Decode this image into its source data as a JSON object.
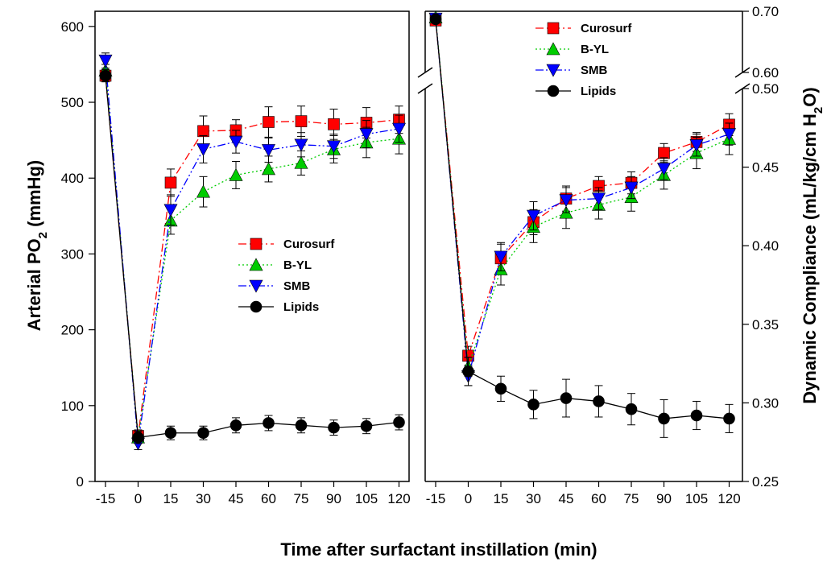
{
  "chart_data": [
    {
      "type": "line",
      "panel": "left",
      "title": "",
      "xlabel": "Time after surfactant instillation (min)",
      "ylabel": "Arterial PO2 (mmHg)",
      "ylabel_parts": {
        "main": "Arterial PO",
        "sub": "2",
        "tail": " (mmHg)"
      },
      "x_categories": [
        "-15",
        "0",
        "15",
        "30",
        "45",
        "60",
        "75",
        "90",
        "105",
        "120"
      ],
      "yticks": [
        "0",
        "100",
        "200",
        "300",
        "400",
        "500",
        "600"
      ],
      "ylim": [
        0,
        620
      ],
      "legend_position": "center-right",
      "error_bars": true,
      "series": [
        {
          "name": "Curosurf",
          "color": "#ff0000",
          "marker": "square",
          "line": "dash-dot",
          "values": [
            535,
            60,
            394,
            462,
            463,
            474,
            475,
            471,
            473,
            477
          ],
          "errors": [
            8,
            8,
            18,
            20,
            14,
            20,
            20,
            20,
            20,
            18
          ]
        },
        {
          "name": "B-YL",
          "color": "#00cc00",
          "marker": "triangle-up",
          "line": "dotted",
          "values": [
            542,
            58,
            344,
            382,
            404,
            412,
            420,
            438,
            447,
            452
          ],
          "errors": [
            8,
            8,
            18,
            20,
            18,
            17,
            16,
            18,
            20,
            20
          ]
        },
        {
          "name": "SMB",
          "color": "#0000ff",
          "marker": "triangle-down",
          "line": "dash-dot-dot",
          "values": [
            555,
            50,
            358,
            438,
            448,
            437,
            444,
            442,
            458,
            465
          ],
          "errors": [
            10,
            8,
            20,
            18,
            15,
            16,
            16,
            16,
            18,
            18
          ]
        },
        {
          "name": "Lipids",
          "color": "#000000",
          "marker": "circle",
          "line": "solid",
          "values": [
            535,
            58,
            64,
            64,
            74,
            77,
            74,
            71,
            73,
            78
          ],
          "errors": [
            8,
            8,
            9,
            9,
            10,
            10,
            10,
            10,
            10,
            10
          ]
        }
      ]
    },
    {
      "type": "line",
      "panel": "right",
      "title": "",
      "xlabel": "Time after surfactant instillation (min)",
      "ylabel": "Dynamic Compliance (mL/kg/cm H2O)",
      "ylabel_parts": {
        "main": "Dynamic Compliance (mL/kg/cm H",
        "sub": "2",
        "tail": "O)"
      },
      "x_categories": [
        "-15",
        "0",
        "15",
        "30",
        "45",
        "60",
        "75",
        "90",
        "105",
        "120"
      ],
      "yticks_lower": [
        "0.25",
        "0.30",
        "0.35",
        "0.40",
        "0.45",
        "0.50"
      ],
      "yticks_upper": [
        "0.60",
        "0.70"
      ],
      "ylim_lower": [
        0.25,
        0.5
      ],
      "ylim_upper": [
        0.6,
        0.7
      ],
      "axis_break": true,
      "legend_position": "top-left",
      "error_bars": true,
      "series": [
        {
          "name": "Curosurf",
          "color": "#ff0000",
          "marker": "square",
          "line": "dash-dot",
          "values": [
            0.685,
            0.33,
            0.392,
            0.415,
            0.43,
            0.438,
            0.44,
            0.459,
            0.466,
            0.477
          ],
          "errors": [
            0.004,
            0.006,
            0.009,
            0.008,
            0.008,
            0.006,
            0.007,
            0.006,
            0.006,
            0.007
          ]
        },
        {
          "name": "B-YL",
          "color": "#00cc00",
          "marker": "triangle-up",
          "line": "dotted",
          "values": [
            0.69,
            0.323,
            0.385,
            0.412,
            0.421,
            0.426,
            0.431,
            0.445,
            0.459,
            0.468
          ],
          "errors": [
            0.004,
            0.006,
            0.01,
            0.01,
            0.01,
            0.009,
            0.009,
            0.009,
            0.01,
            0.01
          ]
        },
        {
          "name": "SMB",
          "color": "#0000ff",
          "marker": "triangle-down",
          "line": "dash-dot-dot",
          "values": [
            0.688,
            0.317,
            0.393,
            0.419,
            0.429,
            0.43,
            0.437,
            0.449,
            0.464,
            0.471
          ],
          "errors": [
            0.004,
            0.006,
            0.009,
            0.009,
            0.008,
            0.007,
            0.007,
            0.007,
            0.007,
            0.007
          ]
        },
        {
          "name": "Lipids",
          "color": "#000000",
          "marker": "circle",
          "line": "solid",
          "values": [
            0.687,
            0.32,
            0.309,
            0.299,
            0.303,
            0.301,
            0.296,
            0.29,
            0.292,
            0.29
          ],
          "errors": [
            0.004,
            0.009,
            0.008,
            0.009,
            0.012,
            0.01,
            0.01,
            0.012,
            0.009,
            0.009
          ]
        }
      ]
    }
  ]
}
